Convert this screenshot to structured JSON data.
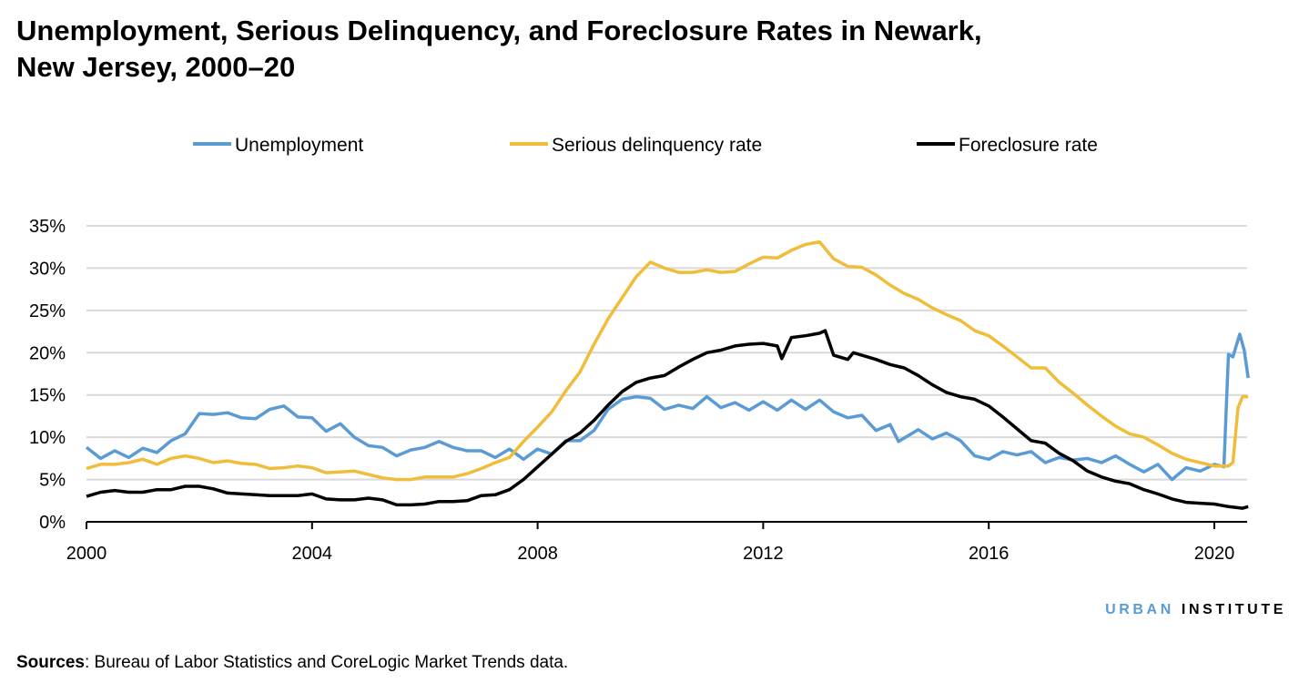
{
  "title": "Unemployment, Serious Delinquency, and Foreclosure Rates in Newark, New Jersey, 2000–20",
  "logo": {
    "part1": "URBAN",
    "part2": "INSTITUTE"
  },
  "sources": {
    "label": "Sources",
    "text": ": Bureau of Labor Statistics and CoreLogic Market Trends data."
  },
  "chart_data": {
    "type": "line",
    "title": "Unemployment, Serious Delinquency, and Foreclosure Rates in Newark, New Jersey, 2000–20",
    "xlabel": "",
    "ylabel": "",
    "xlim": [
      2000,
      2020.6
    ],
    "ylim": [
      0,
      35
    ],
    "x_ticks": [
      2000,
      2004,
      2008,
      2012,
      2016,
      2020
    ],
    "x_tick_labels": [
      "2000",
      "2004",
      "2008",
      "2012",
      "2016",
      "2020"
    ],
    "y_ticks": [
      0,
      5,
      10,
      15,
      20,
      25,
      30,
      35
    ],
    "y_tick_labels": [
      "0%",
      "5%",
      "10%",
      "15%",
      "20%",
      "25%",
      "30%",
      "35%"
    ],
    "grid": true,
    "legend_position": "top",
    "series": [
      {
        "name": "Unemployment",
        "color": "#5b9bd5",
        "points": [
          [
            2000,
            8.8
          ],
          [
            2000.25,
            7.5
          ],
          [
            2000.5,
            8.4
          ],
          [
            2000.75,
            7.6
          ],
          [
            2001,
            8.7
          ],
          [
            2001.25,
            8.2
          ],
          [
            2001.5,
            9.6
          ],
          [
            2001.75,
            10.4
          ],
          [
            2002,
            12.8
          ],
          [
            2002.25,
            12.7
          ],
          [
            2002.5,
            12.9
          ],
          [
            2002.75,
            12.3
          ],
          [
            2003,
            12.2
          ],
          [
            2003.25,
            13.3
          ],
          [
            2003.5,
            13.7
          ],
          [
            2003.75,
            12.4
          ],
          [
            2004,
            12.3
          ],
          [
            2004.25,
            10.7
          ],
          [
            2004.5,
            11.6
          ],
          [
            2004.75,
            10.0
          ],
          [
            2005,
            9.0
          ],
          [
            2005.25,
            8.8
          ],
          [
            2005.5,
            7.8
          ],
          [
            2005.75,
            8.5
          ],
          [
            2006,
            8.8
          ],
          [
            2006.25,
            9.5
          ],
          [
            2006.5,
            8.8
          ],
          [
            2006.75,
            8.4
          ],
          [
            2007,
            8.4
          ],
          [
            2007.25,
            7.6
          ],
          [
            2007.5,
            8.6
          ],
          [
            2007.75,
            7.4
          ],
          [
            2008,
            8.6
          ],
          [
            2008.25,
            8.0
          ],
          [
            2008.5,
            9.6
          ],
          [
            2008.75,
            9.6
          ],
          [
            2009,
            10.8
          ],
          [
            2009.25,
            13.3
          ],
          [
            2009.5,
            14.5
          ],
          [
            2009.75,
            14.8
          ],
          [
            2010,
            14.6
          ],
          [
            2010.25,
            13.3
          ],
          [
            2010.5,
            13.8
          ],
          [
            2010.75,
            13.4
          ],
          [
            2011,
            14.8
          ],
          [
            2011.25,
            13.5
          ],
          [
            2011.5,
            14.1
          ],
          [
            2011.75,
            13.2
          ],
          [
            2012,
            14.2
          ],
          [
            2012.25,
            13.2
          ],
          [
            2012.5,
            14.4
          ],
          [
            2012.75,
            13.3
          ],
          [
            2013,
            14.4
          ],
          [
            2013.25,
            13.0
          ],
          [
            2013.5,
            12.3
          ],
          [
            2013.75,
            12.6
          ],
          [
            2014,
            10.8
          ],
          [
            2014.25,
            11.5
          ],
          [
            2014.4,
            9.5
          ],
          [
            2014.75,
            10.9
          ],
          [
            2015,
            9.8
          ],
          [
            2015.25,
            10.5
          ],
          [
            2015.5,
            9.6
          ],
          [
            2015.75,
            7.8
          ],
          [
            2016,
            7.4
          ],
          [
            2016.25,
            8.3
          ],
          [
            2016.5,
            7.9
          ],
          [
            2016.75,
            8.3
          ],
          [
            2017,
            7.0
          ],
          [
            2017.25,
            7.6
          ],
          [
            2017.5,
            7.3
          ],
          [
            2017.75,
            7.5
          ],
          [
            2018,
            7.0
          ],
          [
            2018.25,
            7.8
          ],
          [
            2018.5,
            6.8
          ],
          [
            2018.75,
            5.9
          ],
          [
            2019,
            6.8
          ],
          [
            2019.25,
            5.0
          ],
          [
            2019.5,
            6.4
          ],
          [
            2019.75,
            6.0
          ],
          [
            2020,
            6.8
          ],
          [
            2020.17,
            6.5
          ],
          [
            2020.25,
            19.8
          ],
          [
            2020.33,
            19.5
          ],
          [
            2020.45,
            22.2
          ],
          [
            2020.53,
            20.3
          ],
          [
            2020.6,
            17.0
          ]
        ]
      },
      {
        "name": "Serious delinquency rate",
        "color": "#f0bd3a",
        "points": [
          [
            2000,
            6.3
          ],
          [
            2000.25,
            6.8
          ],
          [
            2000.5,
            6.8
          ],
          [
            2000.75,
            7.0
          ],
          [
            2001,
            7.4
          ],
          [
            2001.25,
            6.8
          ],
          [
            2001.5,
            7.5
          ],
          [
            2001.75,
            7.8
          ],
          [
            2002,
            7.5
          ],
          [
            2002.25,
            7.0
          ],
          [
            2002.5,
            7.2
          ],
          [
            2002.75,
            6.9
          ],
          [
            2003,
            6.8
          ],
          [
            2003.25,
            6.3
          ],
          [
            2003.5,
            6.4
          ],
          [
            2003.75,
            6.6
          ],
          [
            2004,
            6.4
          ],
          [
            2004.25,
            5.8
          ],
          [
            2004.5,
            5.9
          ],
          [
            2004.75,
            6.0
          ],
          [
            2005,
            5.6
          ],
          [
            2005.25,
            5.2
          ],
          [
            2005.5,
            5.0
          ],
          [
            2005.75,
            5.0
          ],
          [
            2006,
            5.3
          ],
          [
            2006.25,
            5.3
          ],
          [
            2006.5,
            5.3
          ],
          [
            2006.75,
            5.7
          ],
          [
            2007,
            6.3
          ],
          [
            2007.25,
            7.0
          ],
          [
            2007.5,
            7.6
          ],
          [
            2007.75,
            9.5
          ],
          [
            2008,
            11.2
          ],
          [
            2008.25,
            13.0
          ],
          [
            2008.5,
            15.5
          ],
          [
            2008.75,
            17.7
          ],
          [
            2009,
            21.0
          ],
          [
            2009.25,
            24.0
          ],
          [
            2009.5,
            26.5
          ],
          [
            2009.75,
            29.0
          ],
          [
            2010,
            30.7
          ],
          [
            2010.25,
            30.0
          ],
          [
            2010.5,
            29.5
          ],
          [
            2010.75,
            29.5
          ],
          [
            2011,
            29.8
          ],
          [
            2011.25,
            29.5
          ],
          [
            2011.5,
            29.6
          ],
          [
            2011.75,
            30.5
          ],
          [
            2012,
            31.3
          ],
          [
            2012.25,
            31.2
          ],
          [
            2012.5,
            32.1
          ],
          [
            2012.75,
            32.8
          ],
          [
            2013,
            33.1
          ],
          [
            2013.25,
            31.1
          ],
          [
            2013.5,
            30.2
          ],
          [
            2013.75,
            30.1
          ],
          [
            2014,
            29.2
          ],
          [
            2014.25,
            28.0
          ],
          [
            2014.5,
            27.0
          ],
          [
            2014.75,
            26.3
          ],
          [
            2015,
            25.3
          ],
          [
            2015.25,
            24.5
          ],
          [
            2015.5,
            23.8
          ],
          [
            2015.75,
            22.6
          ],
          [
            2016,
            22.0
          ],
          [
            2016.25,
            20.8
          ],
          [
            2016.5,
            19.5
          ],
          [
            2016.75,
            18.2
          ],
          [
            2017,
            18.2
          ],
          [
            2017.25,
            16.5
          ],
          [
            2017.5,
            15.2
          ],
          [
            2017.75,
            13.8
          ],
          [
            2018,
            12.5
          ],
          [
            2018.25,
            11.3
          ],
          [
            2018.5,
            10.4
          ],
          [
            2018.75,
            10.0
          ],
          [
            2019,
            9.1
          ],
          [
            2019.25,
            8.1
          ],
          [
            2019.5,
            7.4
          ],
          [
            2019.75,
            7.0
          ],
          [
            2020,
            6.6
          ],
          [
            2020.25,
            6.6
          ],
          [
            2020.33,
            7.0
          ],
          [
            2020.42,
            13.5
          ],
          [
            2020.5,
            14.8
          ],
          [
            2020.6,
            14.8
          ]
        ]
      },
      {
        "name": "Foreclosure rate",
        "color": "#000000",
        "points": [
          [
            2000,
            3.0
          ],
          [
            2000.25,
            3.5
          ],
          [
            2000.5,
            3.7
          ],
          [
            2000.75,
            3.5
          ],
          [
            2001,
            3.5
          ],
          [
            2001.25,
            3.8
          ],
          [
            2001.5,
            3.8
          ],
          [
            2001.75,
            4.2
          ],
          [
            2002,
            4.2
          ],
          [
            2002.25,
            3.9
          ],
          [
            2002.5,
            3.4
          ],
          [
            2002.75,
            3.3
          ],
          [
            2003,
            3.2
          ],
          [
            2003.25,
            3.1
          ],
          [
            2003.5,
            3.1
          ],
          [
            2003.75,
            3.1
          ],
          [
            2004,
            3.3
          ],
          [
            2004.25,
            2.7
          ],
          [
            2004.5,
            2.6
          ],
          [
            2004.75,
            2.6
          ],
          [
            2005,
            2.8
          ],
          [
            2005.25,
            2.6
          ],
          [
            2005.5,
            2.0
          ],
          [
            2005.75,
            2.0
          ],
          [
            2006,
            2.1
          ],
          [
            2006.25,
            2.4
          ],
          [
            2006.5,
            2.4
          ],
          [
            2006.75,
            2.5
          ],
          [
            2007,
            3.1
          ],
          [
            2007.25,
            3.2
          ],
          [
            2007.5,
            3.8
          ],
          [
            2007.75,
            5.0
          ],
          [
            2008,
            6.5
          ],
          [
            2008.25,
            8.0
          ],
          [
            2008.5,
            9.5
          ],
          [
            2008.75,
            10.5
          ],
          [
            2009,
            12.0
          ],
          [
            2009.25,
            13.8
          ],
          [
            2009.5,
            15.4
          ],
          [
            2009.75,
            16.5
          ],
          [
            2010,
            17.0
          ],
          [
            2010.25,
            17.3
          ],
          [
            2010.5,
            18.3
          ],
          [
            2010.75,
            19.2
          ],
          [
            2011,
            20.0
          ],
          [
            2011.25,
            20.3
          ],
          [
            2011.5,
            20.8
          ],
          [
            2011.75,
            21.0
          ],
          [
            2012,
            21.1
          ],
          [
            2012.25,
            20.8
          ],
          [
            2012.33,
            19.3
          ],
          [
            2012.5,
            21.8
          ],
          [
            2012.75,
            22.0
          ],
          [
            2013,
            22.3
          ],
          [
            2013.1,
            22.6
          ],
          [
            2013.25,
            19.7
          ],
          [
            2013.5,
            19.2
          ],
          [
            2013.6,
            20.0
          ],
          [
            2013.75,
            19.7
          ],
          [
            2014,
            19.2
          ],
          [
            2014.25,
            18.6
          ],
          [
            2014.5,
            18.2
          ],
          [
            2014.75,
            17.3
          ],
          [
            2015,
            16.2
          ],
          [
            2015.25,
            15.3
          ],
          [
            2015.5,
            14.8
          ],
          [
            2015.75,
            14.5
          ],
          [
            2016,
            13.7
          ],
          [
            2016.25,
            12.4
          ],
          [
            2016.5,
            11.0
          ],
          [
            2016.75,
            9.6
          ],
          [
            2017,
            9.3
          ],
          [
            2017.25,
            8.1
          ],
          [
            2017.5,
            7.2
          ],
          [
            2017.75,
            6.0
          ],
          [
            2018,
            5.3
          ],
          [
            2018.25,
            4.8
          ],
          [
            2018.5,
            4.5
          ],
          [
            2018.75,
            3.8
          ],
          [
            2019,
            3.3
          ],
          [
            2019.25,
            2.7
          ],
          [
            2019.5,
            2.3
          ],
          [
            2019.75,
            2.2
          ],
          [
            2020,
            2.1
          ],
          [
            2020.25,
            1.8
          ],
          [
            2020.5,
            1.6
          ],
          [
            2020.6,
            1.8
          ]
        ]
      }
    ]
  }
}
